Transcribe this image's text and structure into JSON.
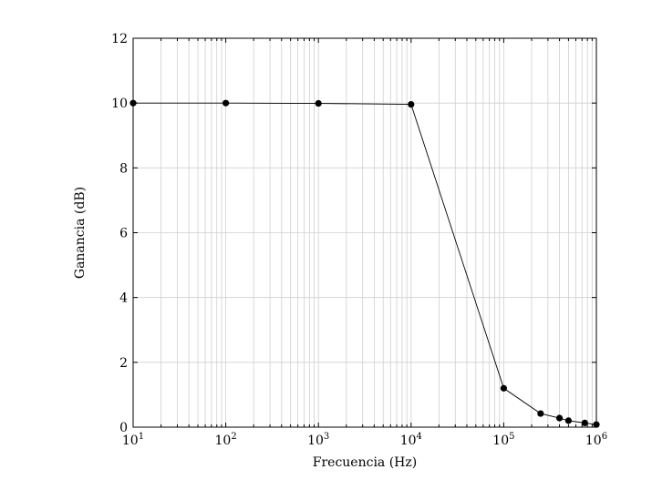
{
  "chart_data": {
    "type": "line",
    "title": "",
    "xlabel": "Frecuencia (Hz)",
    "ylabel": "Ganancia (dB)",
    "x_scale": "log",
    "xlim": [
      10,
      1000000
    ],
    "ylim": [
      0,
      12
    ],
    "grid": true,
    "x_ticks": [
      {
        "base": "10",
        "exp": "1",
        "value": 10
      },
      {
        "base": "10",
        "exp": "2",
        "value": 100
      },
      {
        "base": "10",
        "exp": "3",
        "value": 1000
      },
      {
        "base": "10",
        "exp": "4",
        "value": 10000
      },
      {
        "base": "10",
        "exp": "5",
        "value": 100000
      },
      {
        "base": "10",
        "exp": "6",
        "value": 1000000
      }
    ],
    "y_ticks": [
      {
        "label": "0",
        "value": 0
      },
      {
        "label": "2",
        "value": 2
      },
      {
        "label": "4",
        "value": 4
      },
      {
        "label": "6",
        "value": 6
      },
      {
        "label": "8",
        "value": 8
      },
      {
        "label": "10",
        "value": 10
      },
      {
        "label": "12",
        "value": 12
      }
    ],
    "series": [
      {
        "color": "#000000",
        "marker": "circle",
        "x": [
          10,
          100,
          1000,
          10000,
          100000,
          250000,
          400000,
          500000,
          750000,
          1000000
        ],
        "y": [
          10.0,
          10.0,
          9.99,
          9.96,
          1.2,
          0.42,
          0.28,
          0.2,
          0.13,
          0.08
        ]
      }
    ]
  }
}
